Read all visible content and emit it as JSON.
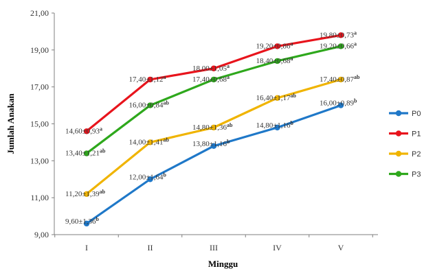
{
  "chart_data": {
    "type": "line",
    "xlabel": "Minggu",
    "ylabel": "Jumlah Anakan",
    "categories": [
      "I",
      "II",
      "III",
      "IV",
      "V"
    ],
    "ylim": [
      9,
      21
    ],
    "yticks": [
      "9,00",
      "11,00",
      "13,00",
      "15,00",
      "17,00",
      "19,00",
      "21,00"
    ],
    "grid": false,
    "legend_position": "right",
    "series": [
      {
        "name": "P0",
        "color": "#1f78c8",
        "values": [
          9.6,
          12.0,
          13.8,
          14.8,
          16.0
        ],
        "labels": [
          "9,60±1,36",
          "12,00±1,64",
          "13,80±1,16",
          "14,80±1,16",
          "16,00±0,89"
        ],
        "sup": [
          "b",
          "b",
          "b",
          "b",
          "b"
        ]
      },
      {
        "name": "P1",
        "color": "#e8141c",
        "values": [
          14.6,
          17.4,
          18.0,
          19.2,
          19.8
        ],
        "labels": [
          "14,60±0,93",
          "17,40±1,12",
          "18,00±1,05",
          "19,20±0,86",
          "19,80±0,73"
        ],
        "sup": [
          "a",
          "a",
          "a",
          "a",
          "a"
        ]
      },
      {
        "name": "P2",
        "color": "#f0b400",
        "values": [
          11.2,
          14.0,
          14.8,
          16.4,
          17.4
        ],
        "labels": [
          "11,20±1,39",
          "14,00±1,41",
          "14,80±1,36",
          "16,40±1,17",
          "17,40±0,87"
        ],
        "sup": [
          "ab",
          "ab",
          "ab",
          "ab",
          "ab"
        ]
      },
      {
        "name": "P3",
        "color": "#2ea81c",
        "values": [
          13.4,
          16.0,
          17.4,
          18.4,
          19.2
        ],
        "labels": [
          "13,40±1,21",
          "16,00±0,84",
          "17,40±0,68",
          "18,40±0,68",
          "19,20±0,66"
        ],
        "sup": [
          "ab",
          "ab",
          "a",
          "a",
          "a"
        ]
      }
    ]
  }
}
